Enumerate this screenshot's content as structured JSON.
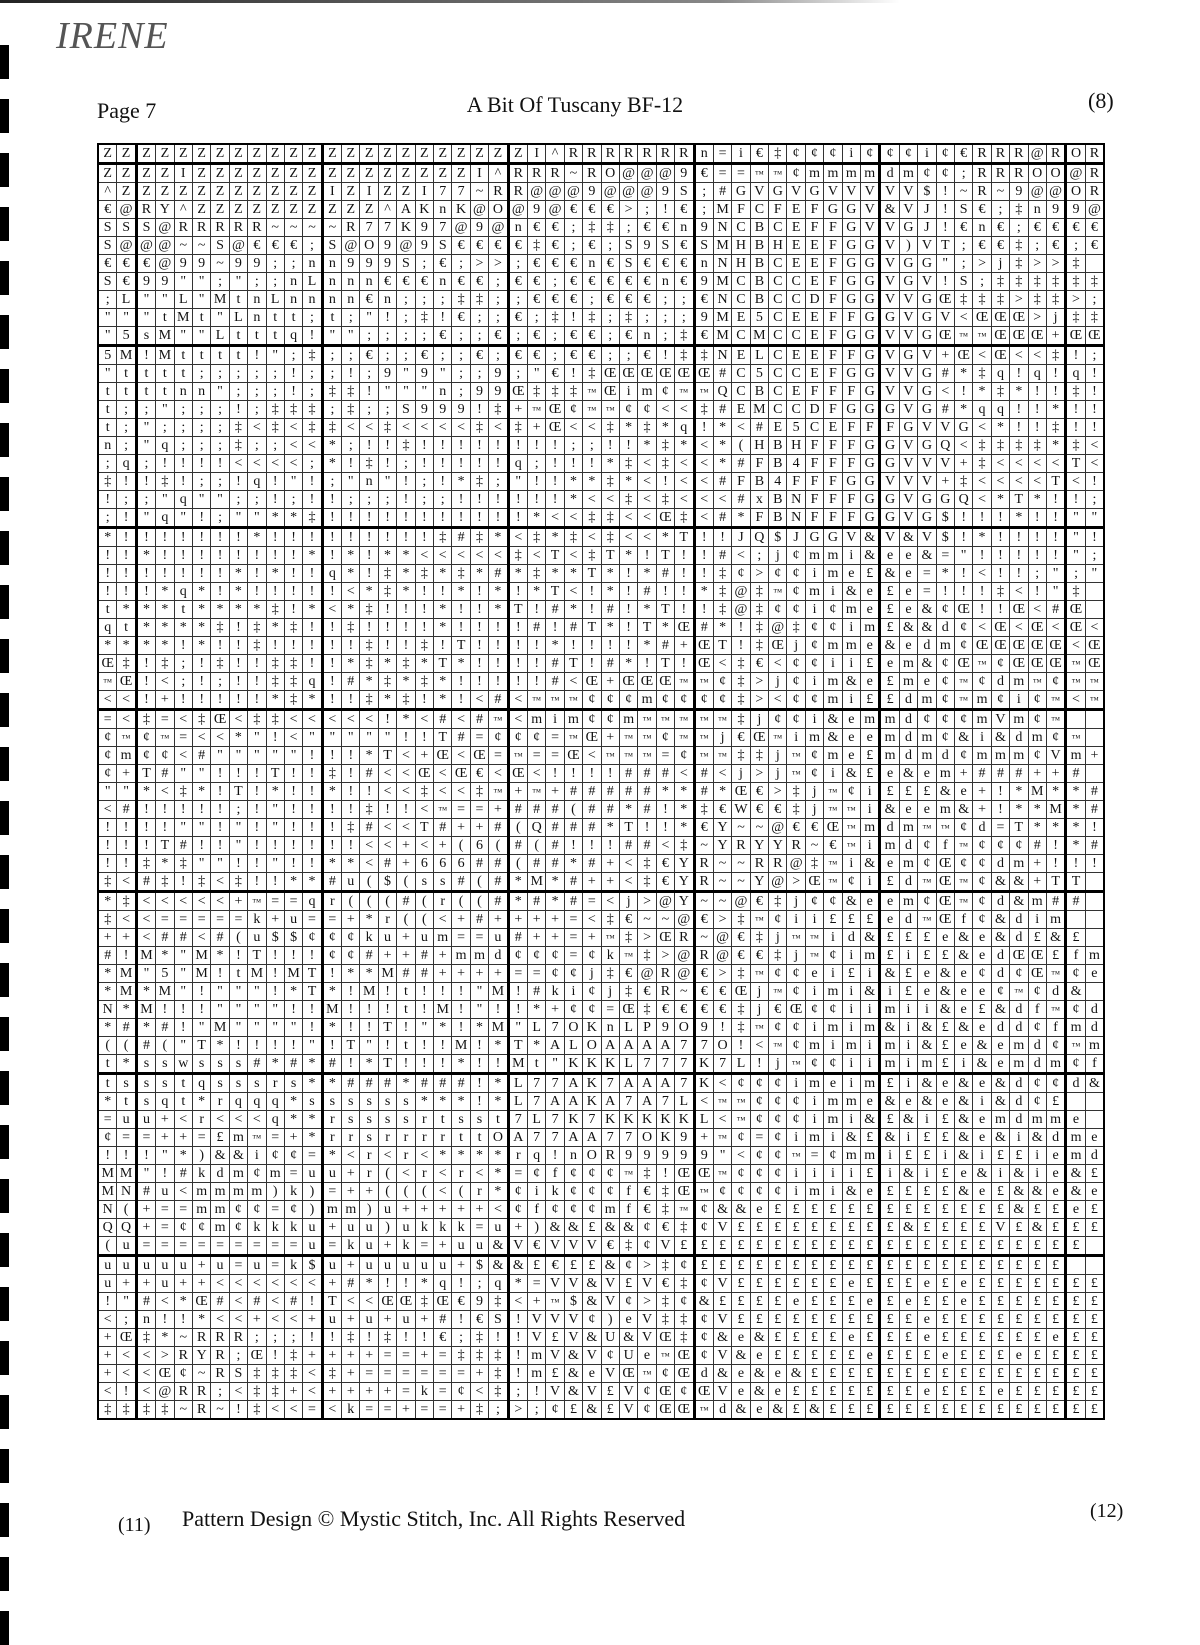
{
  "header": {
    "brand": "IRENE",
    "page_label": "Page 7",
    "title": "A Bit Of Tuscany  BF-12",
    "top_number": "(8)"
  },
  "footer": {
    "left_number": "(11)",
    "text": "Pattern Design © Mystic Stitch, Inc. All Rights Reserved",
    "right_number": "(12)"
  },
  "pattern": {
    "columns": 54,
    "rows": [
      "ZZZZZZZZZZZZZZZZZZZZZZZI^RRRRRRRn=i€‡¢¢¢i¢¢¢i¢€RRR@ROR",
      "ZZZZIZZZZZZZZZZZZZZZI^RRR~RO@@@9€==™™¢mmmmdm¢¢;RRROO@R",
      "^ZZZZZZZZZZZIZIZZI77~RR@@@9@@@9S;#GVGVGVVVVV$!~R~9@@OR",
      "€@RY^ZZZZZZZZZZ^AKnK@O@9@€€€>;!€;MFCFEFGGV&VJ!S€;‡n99@",
      "SSS@RRRRR~~~~R77K97@9@n€€;‡‡;€€n9NCBCEFFGVVGJ!€n€;€€€€",
      "S@@@~~S@€€€;S@O9@9S€€€€‡€;€;S9S€SMHBHEEFGGV)VT;€€‡;€;€",
      "€€€@99~99;;nn999S;€;>>;€€€n€S€€€nNHBCEEFGGVGG\";>j‡>>‡",
      "S€99\"\";\";;nLnnn€€€n€€;€€;€€€€€n€9MCBCCEFGGVGV!S;‡‡‡‡‡‡",
      ";L\"\"L\"MtnLnnnn€n;;;‡‡;;€€€;€€€;;€NCBCCDFGGVVGŒ‡‡‡>‡‡>;",
      "\"\"\"tMt\"Lntt;t;\"!;‡!€;;€;‡!‡;‡;;;9ME5CEEFFGGVGV<ŒŒŒ>j‡‡",
      "\"5sM\"\"Ltttq!\"\";;;;€;;€;€;€€;€n;‡€MCMCCEFGGVVGŒ™™ŒŒŒ+ŒŒ",
      "5M!Mtttt!\";‡;;€;;€;;€;€€;€€;;€!‡‡NELCEEFFGVGV+Œ<Œ<<‡!;",
      "\"tttt;;;;;!;;!;9\"9\";;9;\"€!‡ŒŒŒŒŒŒ#C5CCEFGGVVG#*‡q!q!q!",
      "ttttnn\";;;!;‡‡!\"\"\"n;99Œ‡‡‡™Œim¢™™QCBCEFFFGVVG<!*‡*!!‡!",
      "t;;\";;;!;‡‡‡;‡;;S999!‡+™Œ¢™™¢¢<<‡#EMCCDFGGGVG#*qq!!*!!",
      "t;\";;;;‡<‡<‡‡<<‡<<<<‡<‡+Œ<<‡*‡*q!*<#E5CEFFFGVVG<*!!‡!!",
      "n;\"q;;;‡;;<<*;!!‡!!!!!!!!;;!!*‡*<*(HBHFFFGGVGQ<‡‡‡‡*‡<",
      ";q;!!!!<<<<;*!‡!;!!!!!q;!!!*‡<‡<<*#FB4FFFGGVVV+‡<<<<T<",
      "‡!!‡!;;!q!\"!;\"n\"!;!*‡;\"!!**‡*<!<<#FB4FFFGGVVV+‡<<<<T<!",
      "!;;\"q\"\";;!;!!;;;!;;!!!!!!*<<‡<‡<<<#xBNFFFGGVGGQ<*T*!!;!",
      ";!\"q\"!;\"\"**‡!!!!!!!!!!!*<<‡‡<<Œ‡<#*FBNFFFGGVG$!!!*!!\"\"",
      "*!!!!!!!*!!!!!!!!!‡#‡*<‡*‡<‡<<*T!!JQ$JGGV&V&V$!*!!!!\"!",
      "!!*!!!!!!!!*!*!**<<<<<‡<T<‡T*!T!!#<;j¢mmi&ee&=\"!!!!!\";",
      "!!!!!!!*!*!!q*!‡*‡*‡*#*‡**T*!*#!!‡¢>¢¢ime£&e=*!<!!;\";\"",
      "!!!*q*!*!!!!!<*‡*!!*!*!*T<!*!#!!*‡@‡™¢mi&e£e=!!!‡<!\"‡",
      "t***t****‡!*<*‡!!!*!!*T!#*!#!*T!!‡@‡¢¢i¢me£e&¢Œ!!Œ<#Œ",
      "qt****‡!‡*‡!!‡!!!!*!!!!#!#T*!T*Œ#*!‡@‡¢¢im£&&d¢<Œ<Œ<Œ<",
      "****!*!!‡!!!!!‡!!‡!T!!!!*!!!!*#+ŒT!‡Œj¢mme&edm¢ŒŒŒŒŒ<Œ‡",
      "Œ‡!‡;!‡!!‡‡!!*‡*‡*T*!!!!#T!#*!T!Œ<‡€<¢¢ii£em&¢Œ™¢ŒŒŒ™Œ",
      "™Œ!<;!;!!‡‡q!#*‡*‡*!!!!!#<Œ+ŒŒŒ™™¢‡>j¢im&e£me¢™¢dm™¢™™",
      "<<!+!!!!!*‡*!!‡*‡!*!<#<™™™¢¢¢m¢¢¢¢‡><¢¢mi££dm¢™m¢i¢™<™",
      "=<‡=<‡Œ<‡‡<<<<<!*<#<#™<mim¢¢m™™™™™‡j¢¢i&emmd¢¢¢mVm¢™",
      "¢™¢™=<<*\"!<\"\"\"\"\"!!T#=¢¢¢=™Œ+™™¢™™j€Œ™im&eemdm¢&i&dm¢™",
      "¢m¢¢<#\"\"\"\"\"!!!*T<+Œ<Œ=™==Œ<™™™=¢™™‡‡j™¢me£mdmd¢mmm¢Vm+",
      "¢+T#\"\"!!!T!!‡!#<<Œ<Œ€<Œ<!!!!###<#<j>j™¢i&£e&em+###++#",
      "\"\"*<‡*!T!*!!*!!<<‡<<‡™+™+#####**#*Œ€>‡j™¢i£££&e+!*M**#",
      "<#!!!!!;!\"!!!!‡!!<™==+###(##*#!*‡€W€€‡j™™i&eem&+!**M*#",
      "!!!!\"\"!\"!\"!!!‡#<<T#++#(Q###*T!!*€Y~~@€€Œ™mdm™™¢d=T***!",
      "!!!T#!!\"!!!!!!<<+<+(6(#(#!!!##<‡~YRYYR~€™imd¢f™¢¢¢#!*#",
      "!!‡*‡\"\"!!\"!!**<#+666##(##*#+<‡€YR~~RR@‡™i&em¢Œ¢¢dm+!!!",
      "‡<#‡!‡<‡!!**#u($(ss#(#*M*#++<‡€YR~~Y@>Œ™¢i£d™Œ™¢&&+TT",
      "*‡<<<<<+™==qr(((#(r((#*#*#=<j>@Y~~@€‡j¢¢&eem¢Œ™¢d&m##",
      "‡<<=====k+u==+*r((<+#++++=<‡€~~@€>‡™¢ii£££ed™Œf¢&dim",
      "++<##<#(u$$¢¢¢ku+um==u#++=+™‡>ŒR~@€‡j™™id&£££e&e&d£&£",
      "#!M*\"M*!T!!!¢¢#++#+mmd¢¢¢=¢k™‡>@R@€€‡j™¢im£i££&edŒŒ£fm&m",
      "*M\"5\"M!tM!MT!**M##++++==¢¢j‡€@R@€>‡™¢¢ei£i&£e&e¢d¢Œ™¢e",
      "*M*M\"!\"\"\"!*T*!M!t!!!\"M!#ki¢j‡€R~€€Œj™¢imi&i£e&ee¢™¢d&",
      "N*M!!!\"\"\"\"!!M!!!t!M!\"!!*+¢¢=Œ‡€€€€‡j€Œ¢¢iimii&e£&df™¢d&",
      "*#*#!\"M\"\"\"\"!*!!T!\"*!*M\"L7OKnLP9O9!‡™¢¢imim&i&£&edd¢fmd",
      "((#(\"T*!!!!\"!T\"!t!!M!*T*ALOAAAA77O!<™¢mimimi&£e&emd¢™md",
      "t*sswsss#*#*#!*T!!!*!!Mt\"KKKL777K7L!j™¢¢iimim£i&emdm¢fme",
      "tssstqsssrs**###*###!*L77AK7AAA7K<¢¢¢imeim£i&e&e&d¢¢d&",
      "*tsqt*rqqq*ssssss***!*L7AAKA7A7L<™™¢¢¢imme&e&e&i&d¢£",
      "=uu+<r<<<q**rssssrtsst7L7K7KKKKKL<™¢¢¢imi&£&i£&emdmme",
      "¢==++=£m™=+*rrsrrrrttOA77AA77OK9+™¢=¢imi&£&i££&e&i&dme£",
      "!!!\"*)&&i¢¢=*<r<r<****rq!nOR99999\"<¢¢™=¢mmi££i&i££iemd&e",
      "MM\"!#kdm¢m=uu+r(<r<r<*=¢f¢¢¢™‡!ŒŒ™¢¢¢iiii£i&i£e&i&ie&£",
      "MN#u<mmmm)k)=++(((<(r*¢ik¢¢¢f€‡Œ™¢¢¢¢imi&e££££&e£&&e&e",
      "N(+==mm¢¢=¢)mm)u+++++<¢f¢¢¢mf€‡™¢&&e£££££££££££££&££e£",
      "QQ+=¢¢m¢kkku+uu)ukkk=u+)&&£&&¢€‡¢V£££££££££&££££V£&£££&",
      "(u=========u=ku+k=+uu&V€VVV€‡¢V££££££££££££££££££££££",
      "uuuuu+u=u=k$u+uuuuu+$&&£€££&¢>‡¢££££££££££££££££££££",
      "u++u++<<<<<<+#*!!*q!;q*=VV&V£V€‡¢V££££££e£££e£e££££££££",
      "!\"#<*Œ#<#<#!T<<ŒŒ‡Œ€9‡<+™$&V¢>‡¢&££££e£££e£e££e£££££££",
      "<;n!!*<<+<<+u+u+u+#!€S!VVV¢)eV‡‡¢V££££££££££e£££££££££",
      "+Œ‡*~RRR;;;!!‡!‡!!€;‡!!V£V&U&VŒ‡¢&e&££££e£££e££££££e££",
      "+<<>RYR;Œ!‡++++==+=‡‡‡!mV&V¢Ue™Œ¢V&e£££££e£££e£££e££££",
      "+<<Œ¢~RS‡‡‡<‡+======+‡!m£&eVŒ™¢Œd&e&e&££££££££££££££££",
      "<!<@RR;<‡‡+<++++=k=¢<‡;!V&V£V¢Œ¢ŒVe&e£££££££e£££e£££££",
      "‡‡‡‡~R~!‡<<=<k==+==+‡;>;¢£&£V¢ŒŒ™d&e&£&£££££££££££££££"
    ]
  }
}
